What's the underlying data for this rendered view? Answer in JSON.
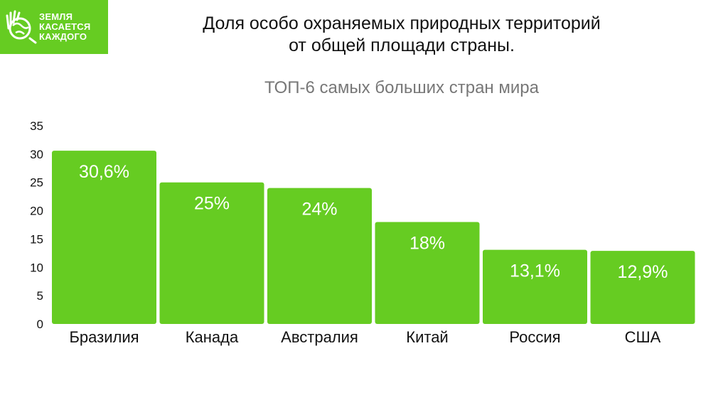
{
  "logo": {
    "lines": [
      "ЗЕМЛЯ",
      "КАСАЕТСЯ",
      "КАЖДОГО"
    ],
    "color": "#66cc22"
  },
  "title_lines": [
    "Доля особо охраняемых природных территорий",
    "от общей площади страны."
  ],
  "subtitle": "ТОП-6 самых больших стран мира",
  "chart_data": {
    "type": "bar",
    "categories": [
      "Бразилия",
      "Канада",
      "Австралия",
      "Китай",
      "Россия",
      "США"
    ],
    "values": [
      30.6,
      25,
      24,
      18,
      13.1,
      12.9
    ],
    "data_labels": [
      "30,6%",
      "25%",
      "24%",
      "18%",
      "13,1%",
      "12,9%"
    ],
    "title": "Доля особо охраняемых природных территорий от общей площади страны.",
    "subtitle": "ТОП-6 самых больших стран мира",
    "ylim": [
      0,
      35
    ],
    "yticks": [
      0,
      5,
      10,
      15,
      20,
      25,
      30,
      35
    ],
    "bar_color": "#66cc22",
    "grid": false,
    "legend": "none"
  }
}
